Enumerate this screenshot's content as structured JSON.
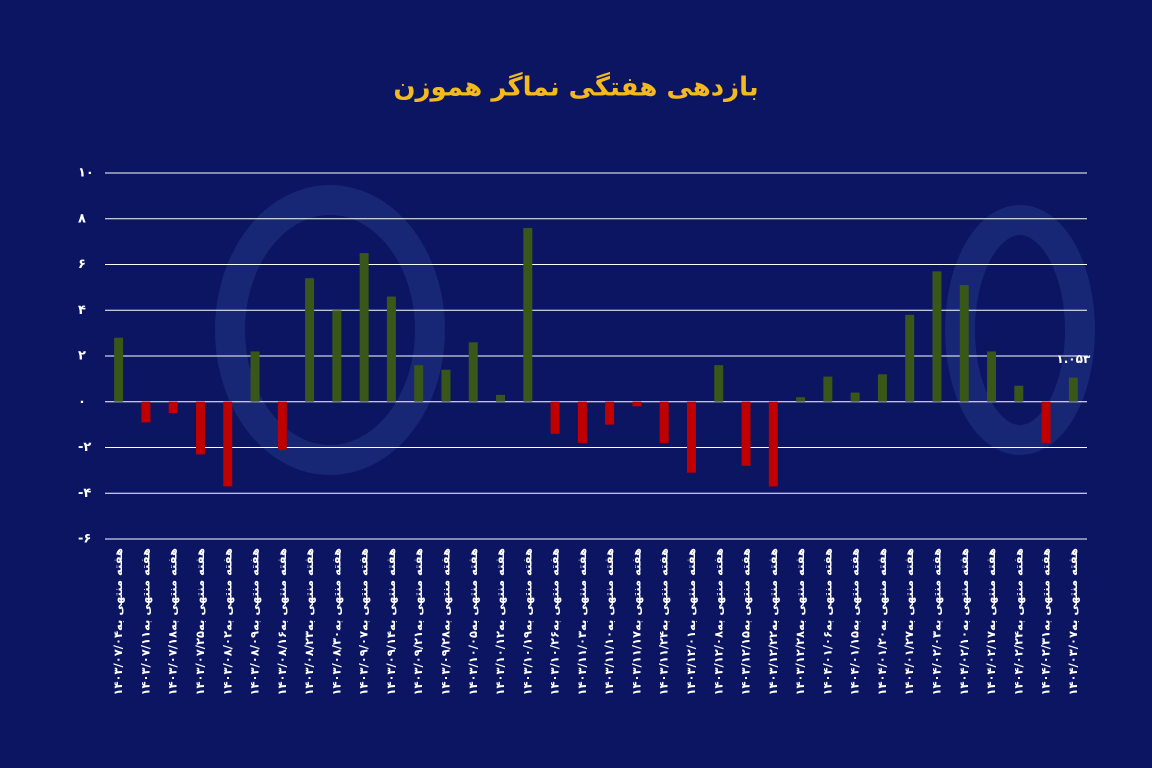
{
  "chart_data": {
    "type": "bar",
    "title": "بازدهی هفتگی نماگر هموزن",
    "categories": [
      "هفته منتهی به۱۴۰۳/۰۷/۰۴",
      "هفته منتهی به۱۴۰۳/۰۷/۱۱",
      "هفته منتهی به۱۴۰۳/۰۷/۱۸",
      "هفته منتهی به۱۴۰۳/۰۷/۲۵",
      "هفته منتهی به۱۴۰۳/۰۸/۰۲",
      "هفته منتهی به۱۴۰۳/۰۸/۰۹",
      "هفته منتهی به۱۴۰۳/۰۸/۱۶",
      "هفته منتهی به۱۴۰۳/۰۸/۲۳",
      "هفته منتهی به۱۴۰۳/۰۸/۳۰",
      "هفته منتهی به۱۴۰۳/۰۹/۰۷",
      "هفته منتهی به۱۴۰۳/۰۹/۱۴",
      "هفته منتهی به۱۴۰۳/۰۹/۲۱",
      "هفته منتهی به۱۴۰۳/۰۹/۲۸",
      "هفته منتهی به۱۴۰۳/۱۰/۰۵",
      "هفته منتهی به۱۴۰۳/۱۰/۱۲",
      "هفته منتهی به۱۴۰۳/۱۰/۱۹",
      "هفته منتهی به۱۴۰۳/۱۰/۲۶",
      "هفته منتهی به۱۴۰۳/۱۱/۰۳",
      "هفته منتهی به۱۴۰۳/۱۱/۱۰",
      "هفته منتهی به۱۴۰۳/۱۱/۱۷",
      "هفته منتهی به۱۴۰۳/۱۱/۲۴",
      "هفته منتهی به۱۴۰۳/۱۲/۰۱",
      "هفته منتهی به۱۴۰۳/۱۲/۰۸",
      "هفته منتهی به۱۴۰۳/۱۲/۱۵",
      "هفته منتهی به۱۴۰۳/۱۲/۲۲",
      "هفته منتهی به۱۴۰۳/۱۲/۲۸",
      "هفته منتهی به۱۴۰۴/۰۱/۰۶",
      "هفته منتهی به۱۴۰۴/۰۱/۱۵",
      "هفته منتهی به۱۴۰۴/۰۱/۲۰",
      "هفته منتهی به۱۴۰۴/۰۱/۲۷",
      "هفته منتهی به۱۴۰۴/۰۲/۰۳",
      "هفته منتهی به۱۴۰۴/۰۲/۱۰",
      "هفته منتهی به۱۴۰۴/۰۲/۱۷",
      "هفته منتهی به۱۴۰۴/۰۲/۲۴",
      "هفته منتهی به۱۴۰۴/۰۲/۳۱",
      "هفته منتهی به۱۴۰۴/۰۳/۰۷"
    ],
    "values": [
      2.8,
      -0.9,
      -0.5,
      -2.3,
      -3.7,
      2.2,
      -2.1,
      5.4,
      4.0,
      6.5,
      4.6,
      1.6,
      1.4,
      2.6,
      0.3,
      7.6,
      -1.4,
      -1.8,
      -1.0,
      -0.2,
      -1.8,
      -3.1,
      1.6,
      -2.8,
      -3.7,
      0.2,
      1.1,
      0.4,
      1.2,
      3.8,
      5.7,
      5.1,
      2.2,
      0.7,
      -1.8,
      1.053
    ],
    "value_labels": [
      null,
      null,
      null,
      null,
      null,
      null,
      null,
      null,
      null,
      null,
      null,
      null,
      null,
      null,
      null,
      null,
      null,
      null,
      null,
      null,
      null,
      null,
      null,
      null,
      null,
      null,
      null,
      null,
      null,
      null,
      null,
      null,
      null,
      null,
      null,
      "۱.۰۵۳"
    ],
    "colors": {
      "positive": "#385718",
      "negative": "#c00000"
    },
    "ylim": [
      -6,
      10
    ],
    "yticks": [
      {
        "value": -6,
        "label": "-۶"
      },
      {
        "value": -4,
        "label": "-۴"
      },
      {
        "value": -2,
        "label": "-۲"
      },
      {
        "value": 0,
        "label": "۰"
      },
      {
        "value": 2,
        "label": "۲"
      },
      {
        "value": 4,
        "label": "۴"
      },
      {
        "value": 6,
        "label": "۶"
      },
      {
        "value": 8,
        "label": "۸"
      },
      {
        "value": 10,
        "label": "۱۰"
      }
    ],
    "grid": true
  }
}
